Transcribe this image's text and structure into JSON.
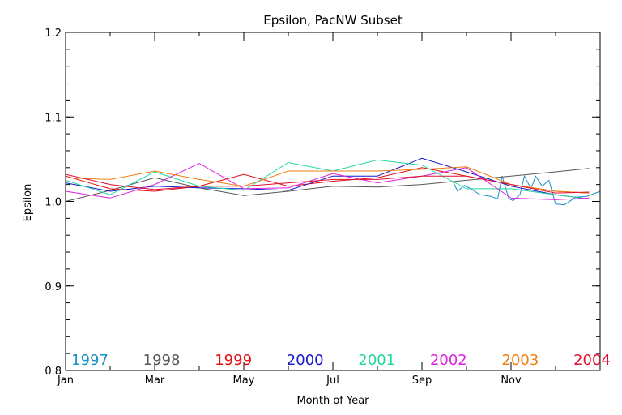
{
  "chart_data": {
    "type": "line",
    "title": "Epsilon, PacNW Subset",
    "xlabel": "Month of Year",
    "ylabel": "Epsilon",
    "xlim": [
      1,
      13
    ],
    "ylim": [
      0.8,
      1.2
    ],
    "x_ticks": [
      {
        "value": 1,
        "label": "Jan"
      },
      {
        "value": 3,
        "label": "Mar"
      },
      {
        "value": 5,
        "label": "May"
      },
      {
        "value": 7,
        "label": "Jul"
      },
      {
        "value": 9,
        "label": "Sep"
      },
      {
        "value": 11,
        "label": "Nov"
      }
    ],
    "y_ticks": [
      {
        "value": 0.8,
        "label": "0.8"
      },
      {
        "value": 0.9,
        "label": "0.9"
      },
      {
        "value": 1.0,
        "label": "1.0"
      },
      {
        "value": 1.1,
        "label": "1.1"
      },
      {
        "value": 1.2,
        "label": "1.2"
      }
    ],
    "grid": false,
    "legend_position": "bottom, inside plot area",
    "series": [
      {
        "name": "1997",
        "color": "#1a90c8",
        "x": [
          9.7,
          9.8,
          9.95,
          10.1,
          10.3,
          10.55,
          10.7,
          10.8,
          10.95,
          11.05,
          11.2,
          11.3,
          11.45,
          11.55,
          11.7,
          11.85,
          12.0,
          12.2,
          12.45,
          12.7,
          13.0
        ],
        "y": [
          1.023,
          1.012,
          1.019,
          1.015,
          1.008,
          1.006,
          1.003,
          1.03,
          1.003,
          1.001,
          1.008,
          1.03,
          1.015,
          1.03,
          1.018,
          1.025,
          0.997,
          0.996,
          1.005,
          1.006,
          1.012
        ]
      },
      {
        "name": "1998",
        "color": "#555555",
        "x": [
          1.0,
          2.0,
          3.0,
          4.0,
          5.0,
          6.0,
          7.0,
          8.0,
          9.0,
          10.0,
          11.0,
          12.0,
          12.75
        ],
        "y": [
          1.0,
          1.013,
          1.028,
          1.016,
          1.007,
          1.012,
          1.018,
          1.017,
          1.02,
          1.025,
          1.03,
          1.035,
          1.039
        ]
      },
      {
        "name": "1999",
        "color": "#e01010",
        "x": [
          1.0,
          2.0,
          3.0,
          4.0,
          5.0,
          6.0,
          7.0,
          8.0,
          9.0,
          10.0,
          11.0,
          12.0,
          12.75
        ],
        "y": [
          1.03,
          1.015,
          1.012,
          1.018,
          1.032,
          1.018,
          1.024,
          1.028,
          1.04,
          1.03,
          1.02,
          1.012,
          1.01
        ]
      },
      {
        "name": "2000",
        "color": "#1818c8",
        "x": [
          1.0,
          2.0,
          3.0,
          4.0,
          5.0,
          6.0,
          7.0,
          8.0,
          9.0,
          10.0,
          11.0,
          12.0,
          12.75
        ],
        "y": [
          1.022,
          1.012,
          1.018,
          1.016,
          1.015,
          1.013,
          1.03,
          1.03,
          1.051,
          1.035,
          1.018,
          1.008,
          1.003
        ]
      },
      {
        "name": "2001",
        "color": "#20d8a0",
        "x": [
          1.0,
          2.0,
          3.0,
          4.0,
          5.0,
          6.0,
          7.0,
          8.0,
          9.0,
          10.0,
          11.0,
          12.0,
          12.75
        ],
        "y": [
          1.025,
          1.008,
          1.035,
          1.018,
          1.013,
          1.046,
          1.036,
          1.049,
          1.043,
          1.015,
          1.015,
          1.008,
          1.003
        ]
      },
      {
        "name": "2002",
        "color": "#e020e0",
        "x": [
          1.0,
          2.0,
          3.0,
          4.0,
          5.0,
          6.0,
          7.0,
          8.0,
          9.0,
          10.0,
          11.0,
          12.0,
          12.75
        ],
        "y": [
          1.012,
          1.004,
          1.02,
          1.045,
          1.015,
          1.016,
          1.033,
          1.022,
          1.03,
          1.04,
          1.004,
          1.002,
          1.004
        ]
      },
      {
        "name": "2003",
        "color": "#f08010",
        "x": [
          1.0,
          2.0,
          3.0,
          4.0,
          5.0,
          6.0,
          7.0,
          8.0,
          9.0,
          10.0,
          11.0,
          12.0,
          12.75
        ],
        "y": [
          1.028,
          1.026,
          1.036,
          1.026,
          1.018,
          1.036,
          1.036,
          1.036,
          1.038,
          1.041,
          1.02,
          1.012,
          1.01
        ]
      },
      {
        "name": "2004",
        "color": "#e01030",
        "x": [
          1.0,
          2.0,
          3.0,
          4.0,
          5.0,
          6.0,
          7.0,
          8.0,
          9.0,
          10.0,
          11.0,
          12.0,
          12.75
        ],
        "y": [
          1.032,
          1.02,
          1.014,
          1.018,
          1.018,
          1.022,
          1.026,
          1.026,
          1.03,
          1.03,
          1.02,
          1.01,
          1.011
        ]
      }
    ]
  }
}
